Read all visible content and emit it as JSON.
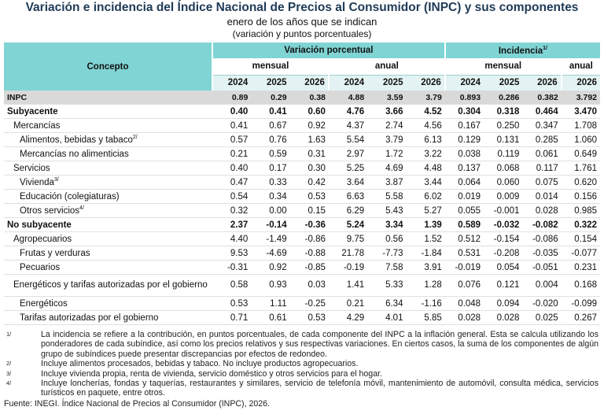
{
  "header": {
    "title": "Variación e incidencia del Índice Nacional de Precios al Consumidor (INPC) y sus componentes",
    "subtitle": "enero de los años que se indican",
    "units": "(variación y puntos porcentuales)"
  },
  "table": {
    "concept_header": "Concepto",
    "groups": [
      {
        "label": "Variación porcentual",
        "note": null
      },
      {
        "label": "Incidencia",
        "note": "1/"
      }
    ],
    "subgroups": [
      "mensual",
      "anual",
      "mensual",
      "anual"
    ],
    "years": [
      "2024",
      "2025",
      "2026",
      "2024",
      "2025",
      "2026",
      "2024",
      "2025",
      "2026",
      "2026"
    ],
    "rows": [
      {
        "label": "INPC",
        "note": null,
        "values": [
          "0.89",
          "0.29",
          "0.38",
          "4.88",
          "3.59",
          "3.79",
          "0.893",
          "0.286",
          "0.382",
          "3.792"
        ]
      },
      {
        "label": "Subyacente",
        "note": null,
        "values": [
          "0.40",
          "0.41",
          "0.60",
          "4.76",
          "3.66",
          "4.52",
          "0.304",
          "0.318",
          "0.464",
          "3.470"
        ]
      },
      {
        "label": "Mercancías",
        "note": null,
        "values": [
          "0.41",
          "0.67",
          "0.92",
          "4.37",
          "2.74",
          "4.56",
          "0.167",
          "0.250",
          "0.347",
          "1.708"
        ]
      },
      {
        "label": "Alimentos, bebidas y tabaco",
        "note": "2/",
        "values": [
          "0.57",
          "0.76",
          "1.63",
          "5.54",
          "3.79",
          "6.13",
          "0.129",
          "0.131",
          "0.285",
          "1.060"
        ]
      },
      {
        "label": "Mercancías no alimenticias",
        "note": null,
        "values": [
          "0.21",
          "0.59",
          "0.31",
          "2.97",
          "1.72",
          "3.22",
          "0.038",
          "0.119",
          "0.061",
          "0.649"
        ]
      },
      {
        "label": "Servicios",
        "note": null,
        "values": [
          "0.40",
          "0.17",
          "0.30",
          "5.25",
          "4.69",
          "4.48",
          "0.137",
          "0.068",
          "0.117",
          "1.761"
        ]
      },
      {
        "label": "Vivienda",
        "note": "3/",
        "values": [
          "0.47",
          "0.33",
          "0.42",
          "3.64",
          "3.87",
          "3.44",
          "0.064",
          "0.060",
          "0.075",
          "0.620"
        ]
      },
      {
        "label": "Educación (colegiaturas)",
        "note": null,
        "values": [
          "0.54",
          "0.34",
          "0.53",
          "6.63",
          "5.58",
          "6.02",
          "0.019",
          "0.009",
          "0.014",
          "0.156"
        ]
      },
      {
        "label": "Otros servicios",
        "note": "4/",
        "values": [
          "0.32",
          "0.00",
          "0.15",
          "6.29",
          "5.43",
          "5.27",
          "0.055",
          "-0.001",
          "0.028",
          "0.985"
        ]
      },
      {
        "label": "No subyacente",
        "note": null,
        "values": [
          "2.37",
          "-0.14",
          "-0.36",
          "5.24",
          "3.34",
          "1.39",
          "0.589",
          "-0.032",
          "-0.082",
          "0.322"
        ]
      },
      {
        "label": "Agropecuarios",
        "note": null,
        "values": [
          "4.40",
          "-1.49",
          "-0.86",
          "9.75",
          "0.56",
          "1.52",
          "0.512",
          "-0.154",
          "-0.086",
          "0.154"
        ]
      },
      {
        "label": "Frutas y verduras",
        "note": null,
        "values": [
          "9.53",
          "-4.69",
          "-0.88",
          "21.78",
          "-7.73",
          "-1.84",
          "0.531",
          "-0.208",
          "-0.035",
          "-0.077"
        ]
      },
      {
        "label": "Pecuarios",
        "note": null,
        "values": [
          "-0.31",
          "0.92",
          "-0.85",
          "-0.19",
          "7.58",
          "3.91",
          "-0.019",
          "0.054",
          "-0.051",
          "0.231"
        ]
      },
      {
        "label": "Energéticos y tarifas autorizadas por el gobierno",
        "note": null,
        "values": [
          "0.58",
          "0.93",
          "0.03",
          "1.41",
          "5.33",
          "1.28",
          "0.076",
          "0.121",
          "0.004",
          "0.168"
        ]
      },
      {
        "label": "Energéticos",
        "note": null,
        "values": [
          "0.53",
          "1.11",
          "-0.25",
          "0.21",
          "6.34",
          "-1.16",
          "0.048",
          "0.094",
          "-0.020",
          "-0.099"
        ]
      },
      {
        "label": "Tarifas autorizadas por el gobierno",
        "note": null,
        "values": [
          "0.71",
          "0.61",
          "0.53",
          "4.29",
          "4.01",
          "5.85",
          "0.028",
          "0.028",
          "0.025",
          "0.267"
        ]
      }
    ]
  },
  "footnotes": [
    {
      "mark": "1/",
      "text": "La incidencia se refiere a la contribución, en puntos porcentuales, de cada componente del INPC a la inflación general. Esta se calcula utilizando los ponderadores de cada subíndice, así como los precios relativos y sus respectivas variaciones. En ciertos casos, la suma de los componentes de algún grupo de subíndices puede presentar discrepancias por efectos de redondeo."
    },
    {
      "mark": "2/",
      "text": "Incluye alimentos procesados, bebidas y tabaco. No incluye productos agropecuarios."
    },
    {
      "mark": "3/",
      "text": "Incluye vivienda propia, renta de vivienda, servicio doméstico y otros servicios para el hogar."
    },
    {
      "mark": "4/",
      "text": "Incluye loncherías, fondas y taquerías, restaurantes y similares, servicio de telefonía móvil, mantenimiento de automóvil, consulta médica, servicios turísticos en paquete, entre otros."
    }
  ],
  "source": "Fuente: INEGI. Índice Nacional de Precios al Consumidor (INPC), 2026."
}
